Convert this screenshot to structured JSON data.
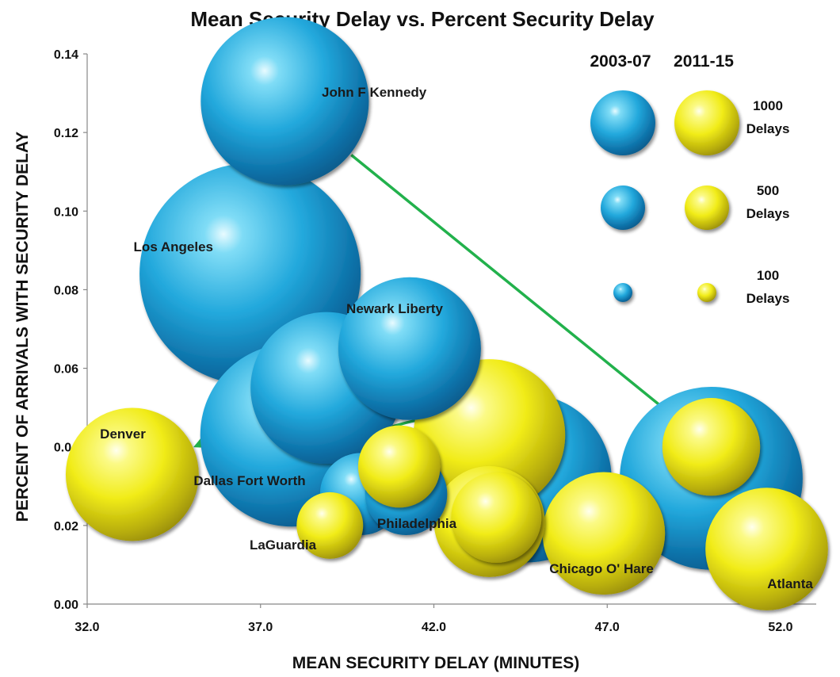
{
  "chart_data": {
    "type": "scatter",
    "title": "Mean Security Delay vs. Percent Security Delay",
    "xlabel": "MEAN SECURITY DELAY (MINUTES)",
    "ylabel": "PERCENT OF ARRIVALS WITH SECURITY DELAY",
    "xlim": [
      32.0,
      52.0
    ],
    "ylim": [
      0.0,
      0.14
    ],
    "x_ticks": [
      "32.0",
      "37.0",
      "42.0",
      "47.0",
      "52.0"
    ],
    "y_ticks": [
      "0.00",
      "0.02",
      "0.04",
      "0.06",
      "0.08",
      "0.10",
      "0.12",
      "0.14"
    ],
    "grid": false,
    "series": [
      {
        "name": "2003-07",
        "color": "#1ea7d8",
        "marker": "blue-bubble"
      },
      {
        "name": "2011-15",
        "color": "#f2ee1a",
        "marker": "yellow-bubble"
      }
    ],
    "airports": [
      {
        "label": "John F Kennedy",
        "p2003": {
          "x": 37.7,
          "y": 0.128,
          "delays": 1000
        },
        "p2011": {
          "x": 50.0,
          "y": 0.04,
          "delays": 300
        }
      },
      {
        "label": "Los Angeles",
        "p2003": {
          "x": 36.7,
          "y": 0.084,
          "delays": 1800
        },
        "p2011": {
          "x": 43.6,
          "y": 0.043,
          "delays": 800
        }
      },
      {
        "label": "Newark Liberty",
        "p2003": {
          "x": 41.3,
          "y": 0.065,
          "delays": 700
        },
        "p2011": {
          "x": 43.8,
          "y": 0.022,
          "delays": 250
        }
      },
      {
        "label": "Denver",
        "p2003": {
          "x": 38.9,
          "y": 0.055,
          "delays": 800
        },
        "p2011": {
          "x": 33.3,
          "y": 0.033,
          "delays": 600
        }
      },
      {
        "label": "Dallas Fort Worth",
        "p2003": {
          "x": 37.9,
          "y": 0.043,
          "delays": 1200
        },
        "p2011": {
          "x": 43.6,
          "y": 0.021,
          "delays": 400
        }
      },
      {
        "label": "Chicago O' Hare",
        "p2003": {
          "x": 44.7,
          "y": 0.032,
          "delays": 1000
        },
        "p2011": {
          "x": 46.9,
          "y": 0.018,
          "delays": 500
        }
      },
      {
        "label": "Atlanta",
        "p2003": {
          "x": 50.0,
          "y": 0.032,
          "delays": 1200
        },
        "p2011": {
          "x": 51.6,
          "y": 0.014,
          "delays": 500
        }
      },
      {
        "label": "LaGuardia",
        "p2003": {
          "x": 39.9,
          "y": 0.028,
          "delays": 200
        },
        "p2011": {
          "x": 39.0,
          "y": 0.02,
          "delays": 120
        }
      },
      {
        "label": "Philadelphia",
        "p2003": {
          "x": 41.2,
          "y": 0.028,
          "delays": 200
        },
        "p2011": {
          "x": 41.0,
          "y": 0.035,
          "delays": 200
        }
      }
    ],
    "legend": {
      "headers": [
        "2003-07",
        "2011-15"
      ],
      "placement": "top-right",
      "sizes": [
        {
          "delays": 1000,
          "line1": "1000",
          "line2": "Delays"
        },
        {
          "delays": 500,
          "line1": "500",
          "line2": "Delays"
        },
        {
          "delays": 100,
          "line1": "100",
          "line2": "Delays"
        }
      ]
    }
  }
}
